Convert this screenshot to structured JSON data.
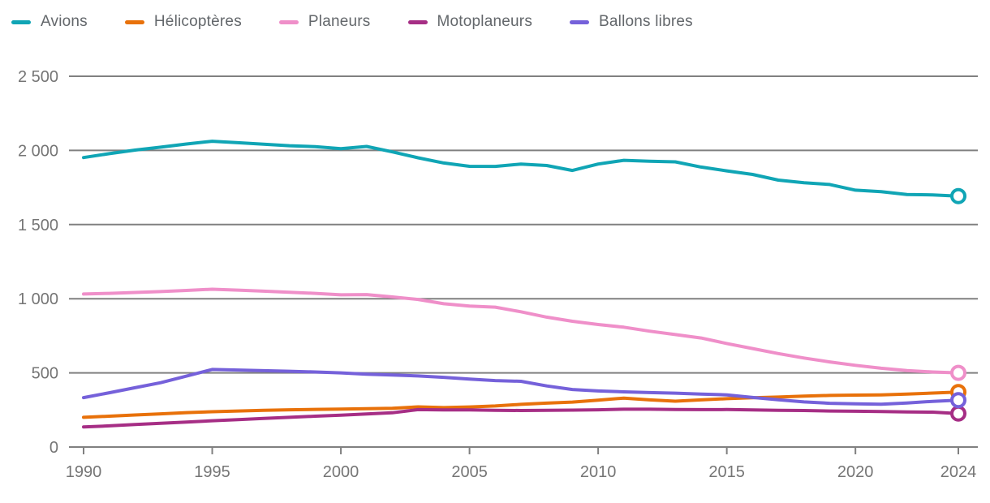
{
  "chart_data": {
    "type": "line",
    "x": [
      1990,
      1991,
      1992,
      1993,
      1994,
      1995,
      1996,
      1997,
      1998,
      1999,
      2000,
      2001,
      2002,
      2003,
      2004,
      2005,
      2006,
      2007,
      2008,
      2009,
      2010,
      2011,
      2012,
      2013,
      2014,
      2015,
      2016,
      2017,
      2018,
      2019,
      2020,
      2021,
      2022,
      2023,
      2024
    ],
    "series": [
      {
        "name": "Avions",
        "color": "#10A5B5",
        "values": [
          1952,
          1978,
          2002,
          2022,
          2043,
          2062,
          2052,
          2042,
          2032,
          2025,
          2012,
          2027,
          1990,
          1950,
          1915,
          1893,
          1892,
          1908,
          1898,
          1865,
          1908,
          1933,
          1927,
          1923,
          1888,
          1862,
          1838,
          1800,
          1782,
          1770,
          1732,
          1722,
          1703,
          1700,
          1692
        ]
      },
      {
        "name": "Hélicoptères",
        "color": "#E8710A",
        "values": [
          200,
          208,
          216,
          224,
          232,
          238,
          243,
          247,
          251,
          254,
          256,
          258,
          261,
          271,
          266,
          270,
          277,
          288,
          296,
          303,
          316,
          330,
          318,
          309,
          318,
          326,
          332,
          337,
          343,
          348,
          350,
          352,
          357,
          364,
          371
        ]
      },
      {
        "name": "Planeurs",
        "color": "#EF8FC9",
        "values": [
          1032,
          1036,
          1042,
          1048,
          1056,
          1064,
          1058,
          1051,
          1044,
          1036,
          1026,
          1028,
          1012,
          995,
          966,
          950,
          943,
          912,
          876,
          848,
          826,
          808,
          781,
          758,
          735,
          698,
          664,
          630,
          600,
          574,
          551,
          531,
          516,
          506,
          500
        ]
      },
      {
        "name": "Motoplaneurs",
        "color": "#A62E85",
        "values": [
          135,
          143,
          152,
          160,
          168,
          177,
          185,
          193,
          200,
          208,
          215,
          223,
          231,
          252,
          250,
          250,
          248,
          246,
          247,
          249,
          251,
          255,
          255,
          253,
          252,
          253,
          250,
          248,
          246,
          243,
          241,
          239,
          237,
          235,
          226
        ]
      },
      {
        "name": "Ballons libres",
        "color": "#7561DA",
        "values": [
          333,
          366,
          400,
          434,
          478,
          523,
          519,
          515,
          511,
          506,
          500,
          491,
          486,
          479,
          470,
          458,
          448,
          443,
          412,
          388,
          378,
          372,
          367,
          363,
          357,
          352,
          334,
          319,
          304,
          295,
          291,
          289,
          297,
          308,
          316
        ]
      }
    ],
    "legend_position": "top-left",
    "grid": true,
    "y_ticks": [
      0,
      500,
      1000,
      1500,
      2000,
      2500
    ],
    "y_tick_labels": [
      "0",
      "500",
      "1 000",
      "1 500",
      "2 000",
      "2 500"
    ],
    "x_ticks": [
      1990,
      1995,
      2000,
      2005,
      2010,
      2015,
      2020,
      2024
    ],
    "x_tick_labels": [
      "1990",
      "1995",
      "2000",
      "2005",
      "2010",
      "2015",
      "2020",
      "2024"
    ],
    "ylim": [
      0,
      2500
    ],
    "xlim": [
      1990,
      2024
    ],
    "title": "",
    "xlabel": "",
    "ylabel": "",
    "gridline_color": "#808080",
    "axis_text_color": "#757575",
    "legend_text_color": "#63676b",
    "end_marker": "open-circle"
  }
}
